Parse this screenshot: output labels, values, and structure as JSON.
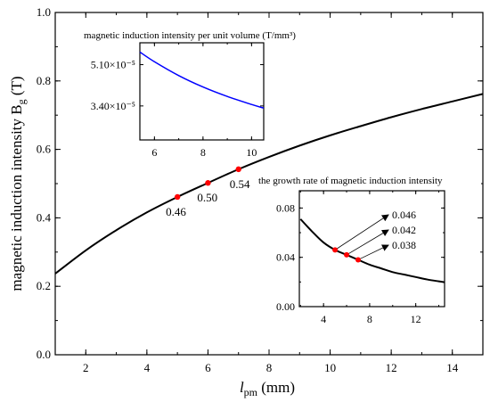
{
  "chart_data": [
    {
      "type": "line",
      "xlabel_main": "l",
      "xlabel_sub": "pm",
      "xlabel_unit": " (mm)",
      "ylabel_main": "magnetic induction intensity B",
      "ylabel_sub": "g",
      "ylabel_unit": " (T)",
      "xlim": [
        1,
        15
      ],
      "ylim": [
        0.0,
        1.0
      ],
      "xticks": [
        2,
        4,
        6,
        8,
        10,
        12,
        14
      ],
      "yticks": [
        0.0,
        0.2,
        0.4,
        0.6,
        0.8,
        1.0
      ],
      "ytick_labels": [
        "0.0",
        "0.2",
        "0.4",
        "0.6",
        "0.8",
        "1.0"
      ],
      "series": [
        {
          "color": "#000000",
          "x": [
            1,
            2,
            3,
            4,
            5,
            6,
            7,
            8,
            9,
            10,
            11,
            12,
            13,
            14,
            15
          ],
          "y": [
            0.237,
            0.305,
            0.364,
            0.416,
            0.461,
            0.502,
            0.542,
            0.578,
            0.611,
            0.641,
            0.668,
            0.694,
            0.718,
            0.74,
            0.762
          ]
        }
      ],
      "markers": [
        {
          "x": 5,
          "y": 0.461,
          "label": "0.46",
          "color": "#ff0000"
        },
        {
          "x": 6,
          "y": 0.502,
          "label": "0.50",
          "color": "#ff0000"
        },
        {
          "x": 7,
          "y": 0.542,
          "label": "0.54",
          "color": "#ff0000"
        }
      ]
    },
    {
      "type": "line",
      "title": "magnetic induction intensity per unit volume (T/mm³)",
      "xlim": [
        5.4,
        10.5
      ],
      "xticks": [
        6,
        8,
        10
      ],
      "ylim": [
        2e-05,
        6e-05
      ],
      "yticks": [
        3.4e-05,
        5.1e-05
      ],
      "ytick_labels": [
        "3.40×10⁻⁵",
        "5.10×10⁻⁵"
      ],
      "series": [
        {
          "color": "#0000ff",
          "x": [
            5.4,
            6,
            7,
            8,
            9,
            10,
            10.5
          ],
          "y": [
            5.62e-05,
            5.22e-05,
            4.65e-05,
            4.18e-05,
            3.79e-05,
            3.46e-05,
            3.31e-05
          ]
        }
      ]
    },
    {
      "type": "line",
      "title": "the growth rate of magnetic induction intensity",
      "xlim": [
        1.9,
        14.5
      ],
      "xticks": [
        4,
        8,
        12
      ],
      "ylim": [
        0.0,
        0.094
      ],
      "yticks": [
        0.0,
        0.04,
        0.08
      ],
      "ytick_labels": [
        "0.00",
        "0.04",
        "0.08"
      ],
      "series": [
        {
          "color": "#000000",
          "x": [
            2,
            3,
            4,
            5,
            6,
            7,
            8,
            9,
            10,
            11,
            12,
            13,
            14,
            14.5
          ],
          "y": [
            0.071,
            0.061,
            0.052,
            0.046,
            0.042,
            0.038,
            0.034,
            0.031,
            0.028,
            0.026,
            0.024,
            0.022,
            0.0205,
            0.0198
          ]
        }
      ],
      "markers": [
        {
          "x": 5,
          "y": 0.046,
          "label": "0.046",
          "color": "#ff0000"
        },
        {
          "x": 6,
          "y": 0.042,
          "label": "0.042",
          "color": "#ff0000"
        },
        {
          "x": 7,
          "y": 0.038,
          "label": "0.038",
          "color": "#ff0000"
        }
      ]
    }
  ]
}
